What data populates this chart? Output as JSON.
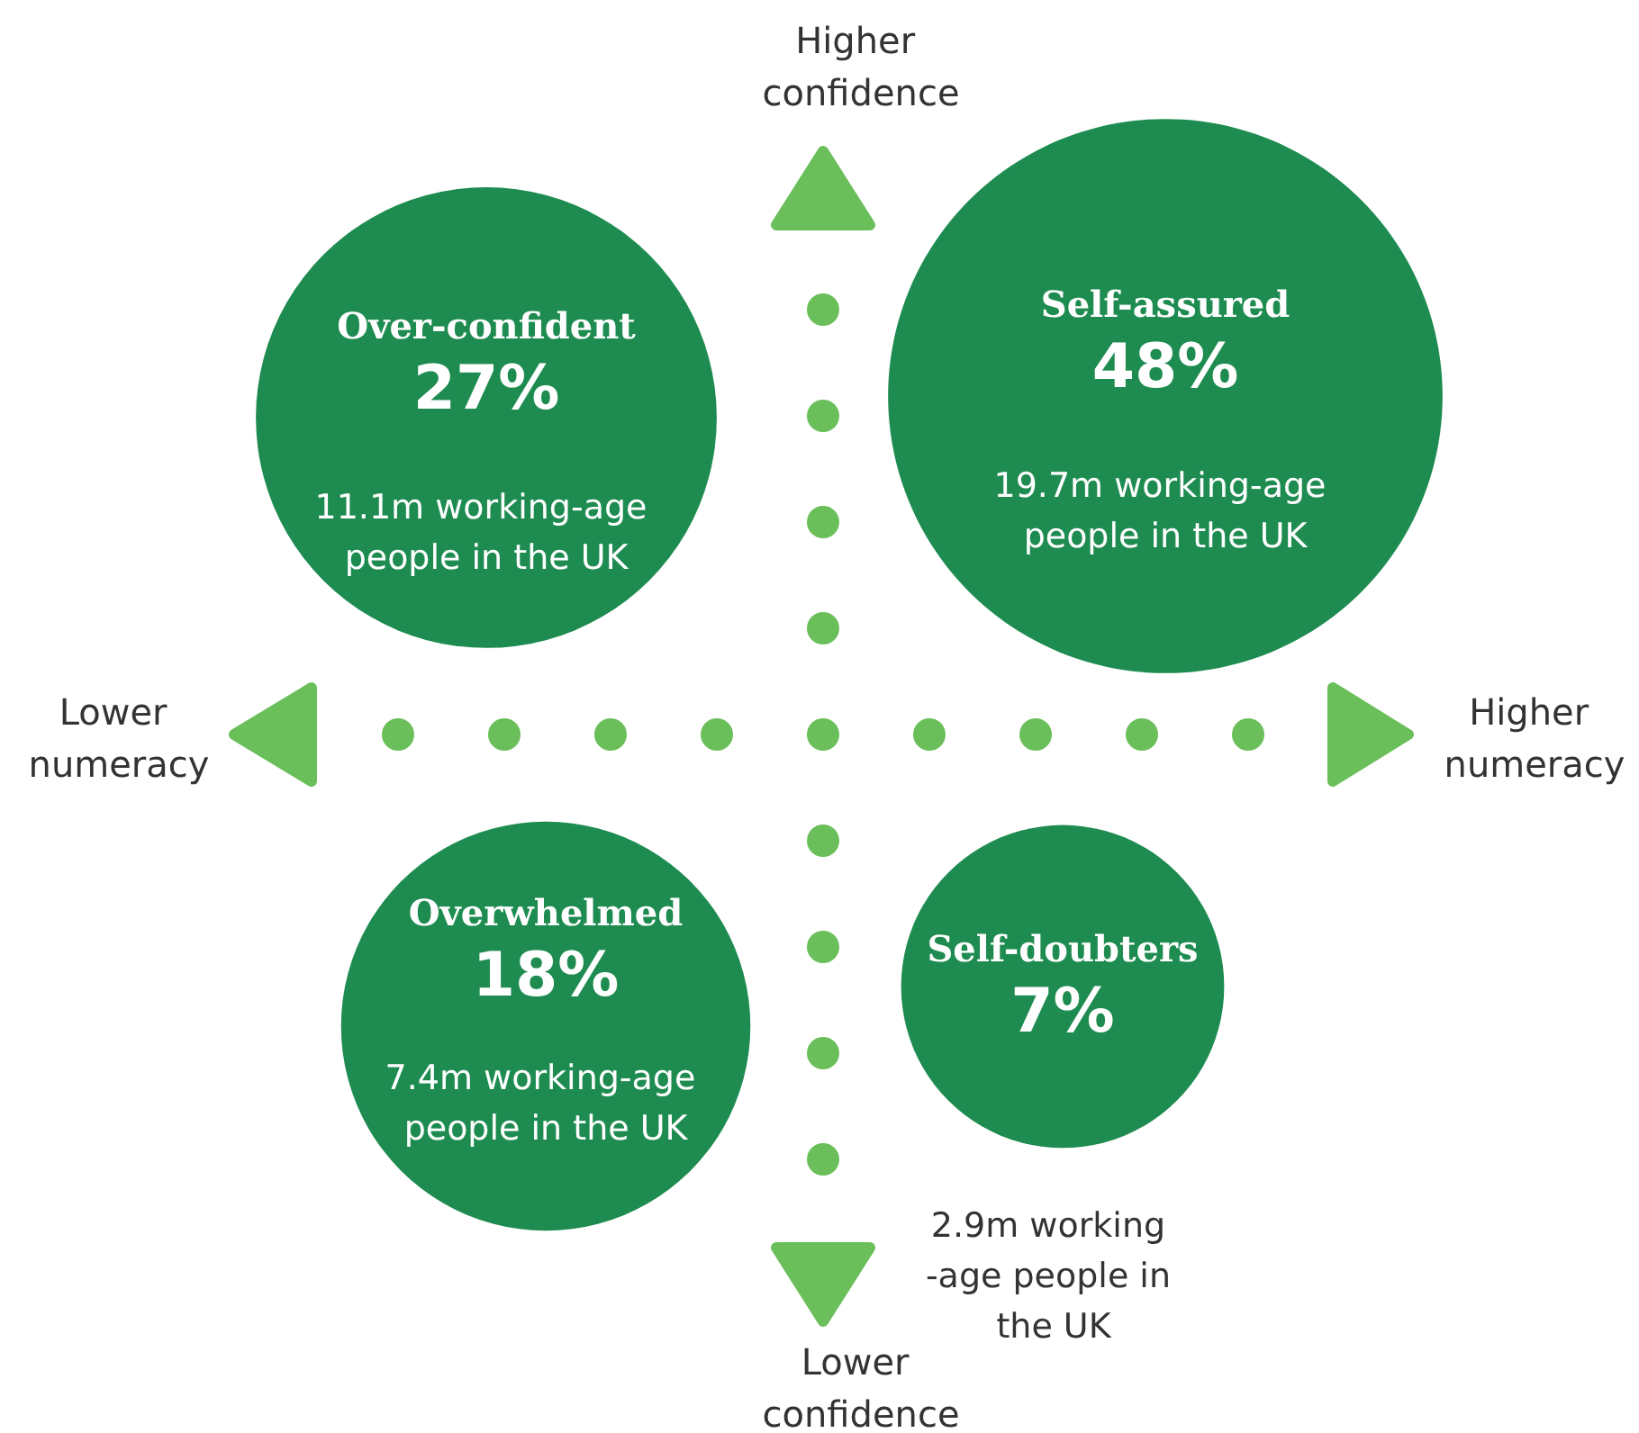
{
  "chart_data": {
    "type": "other",
    "categories": [
      "Over-confident",
      "Self-assured",
      "Overwhelmed",
      "Self-doubters"
    ],
    "values": [
      27,
      48,
      18,
      7
    ],
    "value_labels": [
      "27%",
      "48%",
      "18%",
      "7%"
    ],
    "colors": [
      "#1e8c50",
      "#1e8c50",
      "#1e8c50",
      "#1e8c50"
    ],
    "annotations": [
      "11.1m working-age people in the UK",
      "19.7m working-age people in the UK",
      "7.4m working-age people in the UK",
      "2.9m working -age people in the UK",
      "Higher confidence",
      "Lower confidence",
      "Lower numeracy",
      "Higher numeracy"
    ]
  }
}
